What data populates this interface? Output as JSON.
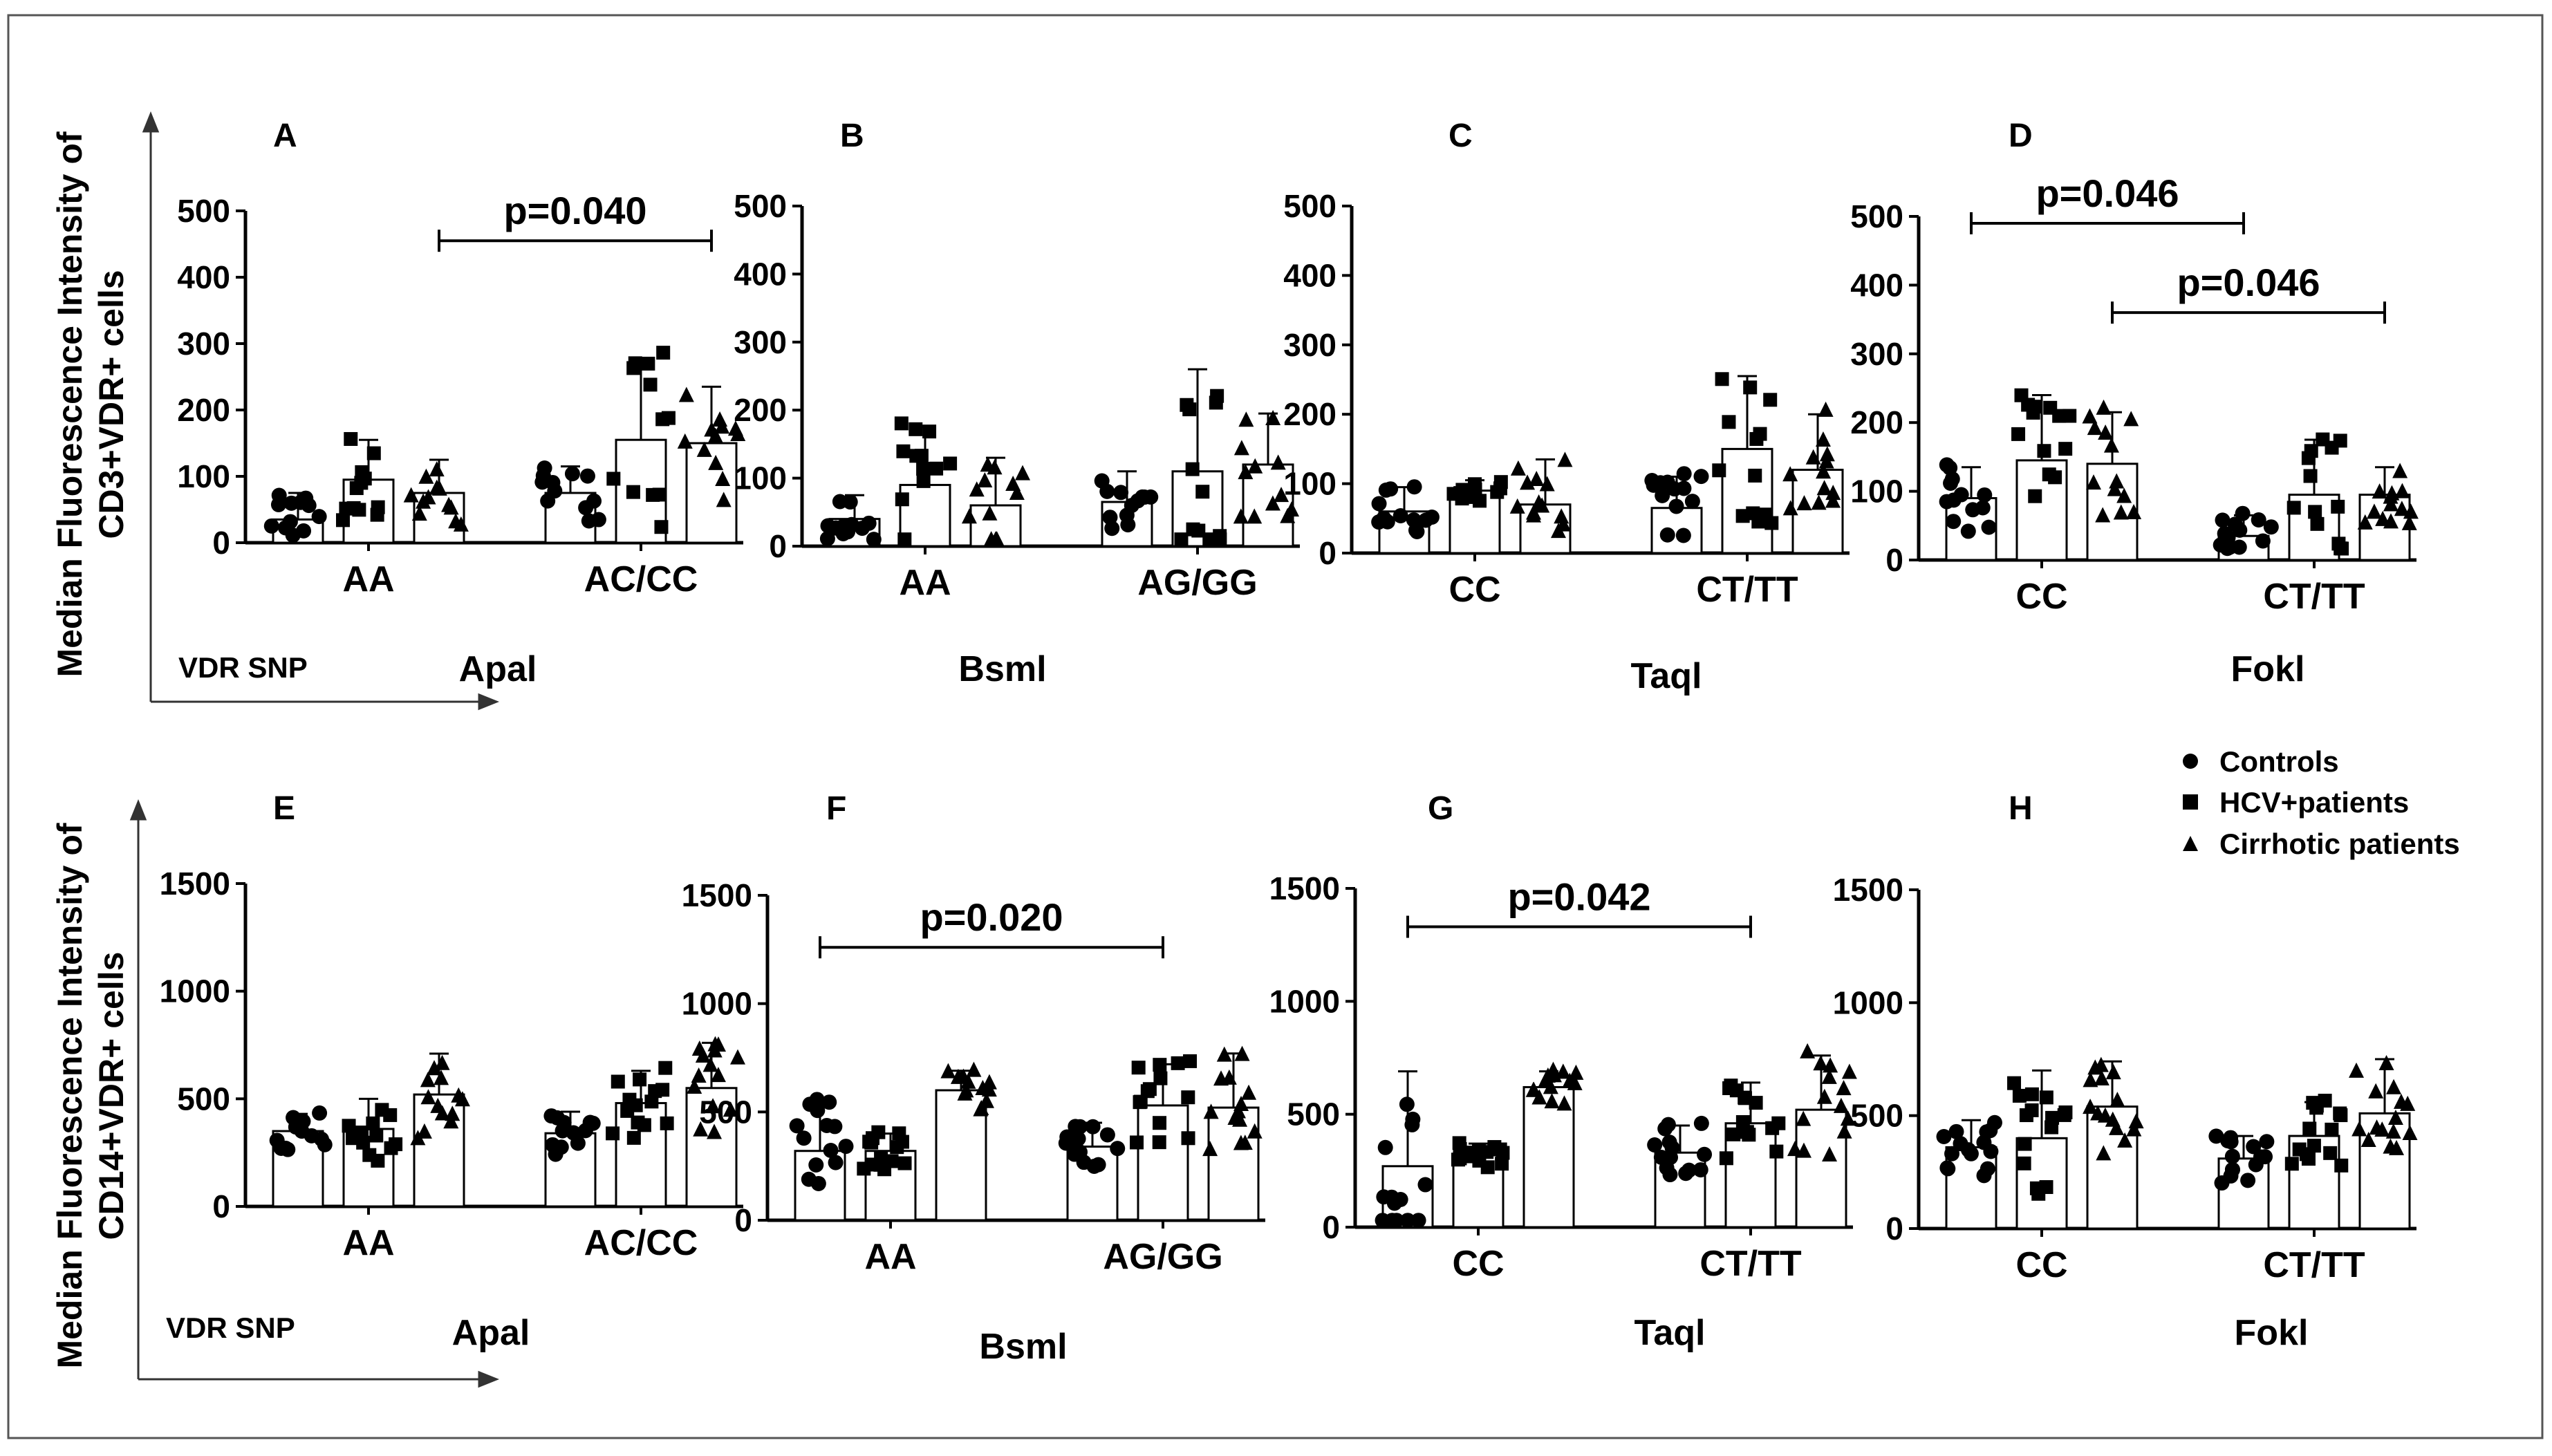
{
  "figure": {
    "row1_ylabel": [
      "Median Fluorescence Intensity of",
      "CD3+VDR+ cells"
    ],
    "row2_ylabel": [
      "Median Fluorescence Intensity of",
      "CD14+VDR+ cells"
    ],
    "vdr_snp_label": "VDR SNP"
  },
  "legend": [
    {
      "marker": "circle",
      "label": "Controls"
    },
    {
      "marker": "square",
      "label": "HCV+patients"
    },
    {
      "marker": "triangle",
      "label": "Cirrhotic patients"
    }
  ],
  "chart_data": [
    {
      "panel": "A",
      "type": "bar",
      "snp": "ApaI",
      "snp_label": "Apal",
      "categories": [
        "AA",
        "AC/CC"
      ],
      "ylim": [
        0,
        500
      ],
      "yticks": [
        0,
        100,
        200,
        300,
        400,
        500
      ],
      "series": [
        {
          "name": "Controls",
          "marker": "circle",
          "values": [
            35,
            75
          ],
          "err": [
            40,
            40
          ]
        },
        {
          "name": "HCV+patients",
          "marker": "square",
          "values": [
            95,
            155
          ],
          "err": [
            60,
            120
          ]
        },
        {
          "name": "Cirrhotic patients",
          "marker": "triangle",
          "values": [
            75,
            150
          ],
          "err": [
            50,
            85
          ]
        }
      ],
      "pvalues": [
        {
          "label": "p=0.040",
          "from": [
            0,
            2
          ],
          "to": [
            1,
            2
          ],
          "y": 455
        }
      ]
    },
    {
      "panel": "B",
      "type": "bar",
      "snp": "BsmI",
      "snp_label": "Bsml",
      "categories": [
        "AA",
        "AG/GG"
      ],
      "ylim": [
        0,
        500
      ],
      "yticks": [
        0,
        100,
        200,
        300,
        400,
        500
      ],
      "series": [
        {
          "name": "Controls",
          "marker": "circle",
          "values": [
            40,
            65
          ],
          "err": [
            35,
            45
          ]
        },
        {
          "name": "HCV+patients",
          "marker": "square",
          "values": [
            90,
            110
          ],
          "err": [
            85,
            150
          ]
        },
        {
          "name": "Cirrhotic patients",
          "marker": "triangle",
          "values": [
            60,
            120
          ],
          "err": [
            70,
            75
          ]
        }
      ],
      "pvalues": []
    },
    {
      "panel": "C",
      "type": "bar",
      "snp": "TaqI",
      "snp_label": "Taql",
      "categories": [
        "CC",
        "CT/TT"
      ],
      "ylim": [
        0,
        500
      ],
      "yticks": [
        0,
        100,
        200,
        300,
        400,
        500
      ],
      "series": [
        {
          "name": "Controls",
          "marker": "circle",
          "values": [
            60,
            65
          ],
          "err": [
            35,
            45
          ]
        },
        {
          "name": "HCV+patients",
          "marker": "square",
          "values": [
            90,
            150
          ],
          "err": [
            15,
            105
          ]
        },
        {
          "name": "Cirrhotic patients",
          "marker": "triangle",
          "values": [
            70,
            120
          ],
          "err": [
            65,
            80
          ]
        }
      ],
      "pvalues": []
    },
    {
      "panel": "D",
      "type": "bar",
      "snp": "FokI",
      "snp_label": "Fokl",
      "categories": [
        "CC",
        "CT/TT"
      ],
      "ylim": [
        0,
        500
      ],
      "yticks": [
        0,
        100,
        200,
        300,
        400,
        500
      ],
      "series": [
        {
          "name": "Controls",
          "marker": "circle",
          "values": [
            90,
            35
          ],
          "err": [
            45,
            30
          ]
        },
        {
          "name": "HCV+patients",
          "marker": "square",
          "values": [
            145,
            95
          ],
          "err": [
            95,
            80
          ]
        },
        {
          "name": "Cirrhotic patients",
          "marker": "triangle",
          "values": [
            140,
            95
          ],
          "err": [
            75,
            40
          ]
        }
      ],
      "pvalues": [
        {
          "label": "p=0.046",
          "from": [
            0,
            0
          ],
          "to": [
            1,
            0
          ],
          "y": 490
        },
        {
          "label": "p=0.046",
          "from": [
            0,
            2
          ],
          "to": [
            1,
            2
          ],
          "y": 360
        }
      ]
    },
    {
      "panel": "E",
      "type": "bar",
      "snp": "ApaI",
      "snp_label": "Apal",
      "categories": [
        "AA",
        "AC/CC"
      ],
      "ylim": [
        0,
        1500
      ],
      "yticks": [
        0,
        500,
        1000,
        1500
      ],
      "series": [
        {
          "name": "Controls",
          "marker": "circle",
          "values": [
            350,
            340
          ],
          "err": [
            80,
            100
          ]
        },
        {
          "name": "HCV+patients",
          "marker": "square",
          "values": [
            360,
            480
          ],
          "err": [
            140,
            150
          ]
        },
        {
          "name": "Cirrhotic patients",
          "marker": "triangle",
          "values": [
            520,
            550
          ],
          "err": [
            190,
            210
          ]
        }
      ],
      "pvalues": []
    },
    {
      "panel": "F",
      "type": "bar",
      "snp": "BsmI",
      "snp_label": "Bsml",
      "categories": [
        "AA",
        "AG/GG"
      ],
      "ylim": [
        0,
        1500
      ],
      "yticks": [
        0,
        500,
        1000,
        1500
      ],
      "series": [
        {
          "name": "Controls",
          "marker": "circle",
          "values": [
            320,
            340
          ],
          "err": [
            230,
            110
          ]
        },
        {
          "name": "HCV+patients",
          "marker": "square",
          "values": [
            320,
            530
          ],
          "err": [
            80,
            190
          ]
        },
        {
          "name": "Cirrhotic patients",
          "marker": "triangle",
          "values": [
            600,
            520
          ],
          "err": [
            90,
            250
          ]
        }
      ],
      "pvalues": [
        {
          "label": "p=0.020",
          "from": [
            0,
            0
          ],
          "to": [
            1,
            1
          ],
          "y": 1260
        }
      ]
    },
    {
      "panel": "G",
      "type": "bar",
      "snp": "TaqI",
      "snp_label": "Taql",
      "categories": [
        "CC",
        "CT/TT"
      ],
      "ylim": [
        0,
        1500
      ],
      "yticks": [
        0,
        500,
        1000,
        1500
      ],
      "series": [
        {
          "name": "Controls",
          "marker": "circle",
          "values": [
            270,
            330
          ],
          "err": [
            420,
            120
          ]
        },
        {
          "name": "HCV+patients",
          "marker": "square",
          "values": [
            320,
            460
          ],
          "err": [
            50,
            180
          ]
        },
        {
          "name": "Cirrhotic patients",
          "marker": "triangle",
          "values": [
            620,
            520
          ],
          "err": [
            70,
            240
          ]
        }
      ],
      "pvalues": [
        {
          "label": "p=0.042",
          "from": [
            0,
            0
          ],
          "to": [
            1,
            1
          ],
          "y": 1330
        }
      ]
    },
    {
      "panel": "H",
      "type": "bar",
      "snp": "FokI",
      "snp_label": "Fokl",
      "categories": [
        "CC",
        "CT/TT"
      ],
      "ylim": [
        0,
        1500
      ],
      "yticks": [
        0,
        500,
        1000,
        1500
      ],
      "series": [
        {
          "name": "Controls",
          "marker": "circle",
          "values": [
            360,
            310
          ],
          "err": [
            120,
            100
          ]
        },
        {
          "name": "HCV+patients",
          "marker": "square",
          "values": [
            400,
            410
          ],
          "err": [
            300,
            150
          ]
        },
        {
          "name": "Cirrhotic patients",
          "marker": "triangle",
          "values": [
            540,
            510
          ],
          "err": [
            200,
            240
          ]
        }
      ],
      "pvalues": []
    }
  ]
}
